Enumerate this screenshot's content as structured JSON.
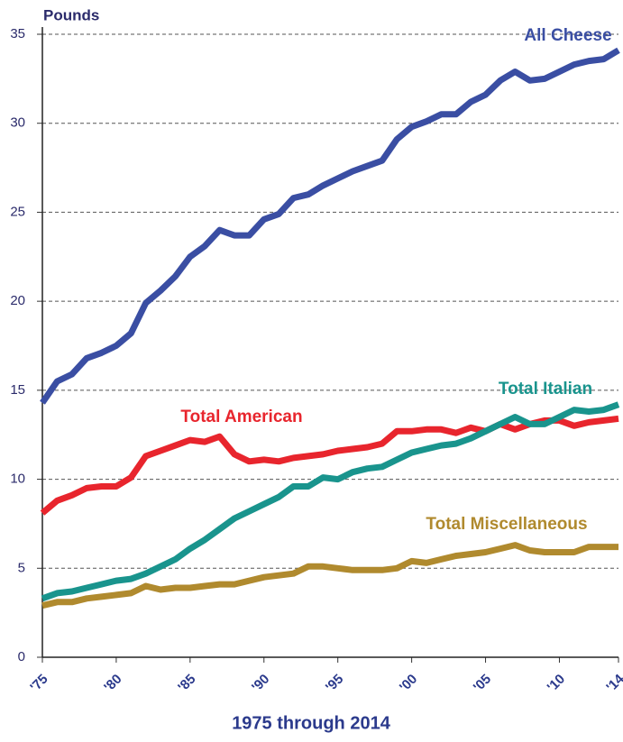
{
  "chart_data": {
    "type": "line",
    "y_label": "Pounds",
    "x_label": "1975 through 2014",
    "x": [
      1975,
      1976,
      1977,
      1978,
      1979,
      1980,
      1981,
      1982,
      1983,
      1984,
      1985,
      1986,
      1987,
      1988,
      1989,
      1990,
      1991,
      1992,
      1993,
      1994,
      1995,
      1996,
      1997,
      1998,
      1999,
      2000,
      2001,
      2002,
      2003,
      2004,
      2005,
      2006,
      2007,
      2008,
      2009,
      2010,
      2011,
      2012,
      2013,
      2014
    ],
    "xlim": [
      1975,
      2014
    ],
    "xticks": [
      {
        "value": 1975,
        "label": "'75"
      },
      {
        "value": 1980,
        "label": "'80"
      },
      {
        "value": 1985,
        "label": "'85"
      },
      {
        "value": 1990,
        "label": "'90"
      },
      {
        "value": 1995,
        "label": "'95"
      },
      {
        "value": 2000,
        "label": "'00"
      },
      {
        "value": 2005,
        "label": "'05"
      },
      {
        "value": 2010,
        "label": "'10"
      },
      {
        "value": 2014,
        "label": "'14"
      }
    ],
    "ylim": [
      0,
      35
    ],
    "yticks": [
      0,
      5,
      10,
      15,
      20,
      25,
      30,
      35
    ],
    "grid": true,
    "series": [
      {
        "name": "All Cheese",
        "color": "#3a4ea3",
        "values": [
          14.3,
          15.5,
          15.9,
          16.8,
          17.1,
          17.5,
          18.2,
          19.9,
          20.6,
          21.4,
          22.5,
          23.1,
          24.0,
          23.7,
          23.7,
          24.6,
          24.9,
          25.8,
          26.0,
          26.5,
          26.9,
          27.3,
          27.6,
          27.9,
          29.1,
          29.8,
          30.1,
          30.5,
          30.5,
          31.2,
          31.6,
          32.4,
          32.9,
          32.4,
          32.5,
          32.9,
          33.3,
          33.5,
          33.6,
          34.1
        ]
      },
      {
        "name": "Total American",
        "color": "#e8252d",
        "values": [
          8.1,
          8.8,
          9.1,
          9.5,
          9.6,
          9.6,
          10.1,
          11.3,
          11.6,
          11.9,
          12.2,
          12.1,
          12.4,
          11.4,
          11.0,
          11.1,
          11.0,
          11.2,
          11.3,
          11.4,
          11.6,
          11.7,
          11.8,
          12.0,
          12.7,
          12.7,
          12.8,
          12.8,
          12.6,
          12.9,
          12.7,
          13.1,
          12.8,
          13.1,
          13.3,
          13.3,
          13.0,
          13.2,
          13.3,
          13.4
        ]
      },
      {
        "name": "Total Italian",
        "color": "#19948d",
        "values": [
          3.3,
          3.6,
          3.7,
          3.9,
          4.1,
          4.3,
          4.4,
          4.7,
          5.1,
          5.5,
          6.1,
          6.6,
          7.2,
          7.8,
          8.2,
          8.6,
          9.0,
          9.6,
          9.6,
          10.1,
          10.0,
          10.4,
          10.6,
          10.7,
          11.1,
          11.5,
          11.7,
          11.9,
          12.0,
          12.3,
          12.7,
          13.1,
          13.5,
          13.1,
          13.1,
          13.5,
          13.9,
          13.8,
          13.9,
          14.2
        ]
      },
      {
        "name": "Total Miscellaneous",
        "color": "#b08a2e",
        "values": [
          2.9,
          3.1,
          3.1,
          3.3,
          3.4,
          3.5,
          3.6,
          4.0,
          3.8,
          3.9,
          3.9,
          4.0,
          4.1,
          4.1,
          4.3,
          4.5,
          4.6,
          4.7,
          5.1,
          5.1,
          5.0,
          4.9,
          4.9,
          4.9,
          5.0,
          5.4,
          5.3,
          5.5,
          5.7,
          5.8,
          5.9,
          6.1,
          6.3,
          6.0,
          5.9,
          5.9,
          5.9,
          6.2,
          6.2,
          6.2
        ]
      }
    ]
  }
}
